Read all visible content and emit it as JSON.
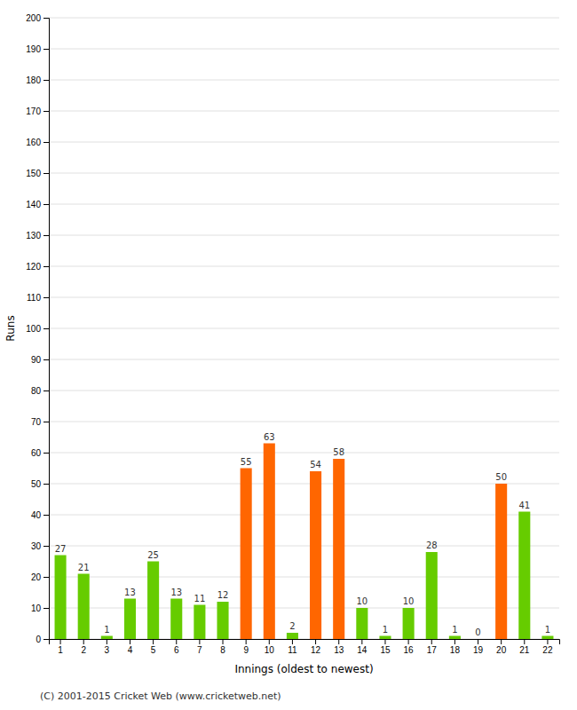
{
  "chart_data": {
    "type": "bar",
    "xlabel": "Innings (oldest to newest)",
    "ylabel": "Runs",
    "categories": [
      "1",
      "2",
      "3",
      "4",
      "5",
      "6",
      "7",
      "8",
      "9",
      "10",
      "11",
      "12",
      "13",
      "14",
      "15",
      "16",
      "17",
      "18",
      "19",
      "20",
      "21",
      "22"
    ],
    "values": [
      27,
      21,
      1,
      13,
      25,
      13,
      11,
      12,
      55,
      63,
      2,
      54,
      58,
      10,
      1,
      10,
      28,
      1,
      0,
      50,
      41,
      1
    ],
    "colors": [
      "#66cc00",
      "#66cc00",
      "#66cc00",
      "#66cc00",
      "#66cc00",
      "#66cc00",
      "#66cc00",
      "#66cc00",
      "#ff6600",
      "#ff6600",
      "#66cc00",
      "#ff6600",
      "#ff6600",
      "#66cc00",
      "#66cc00",
      "#66cc00",
      "#66cc00",
      "#66cc00",
      "#66cc00",
      "#ff6600",
      "#66cc00",
      "#66cc00"
    ],
    "ylim": [
      0,
      200
    ],
    "yticks": [
      0,
      10,
      20,
      30,
      40,
      50,
      60,
      70,
      80,
      90,
      100,
      110,
      120,
      130,
      140,
      150,
      160,
      170,
      180,
      190,
      200
    ],
    "grid": true,
    "data_labels": true,
    "annotations": [
      "(C) 2001-2015 Cricket Web (www.cricketweb.net)"
    ]
  }
}
